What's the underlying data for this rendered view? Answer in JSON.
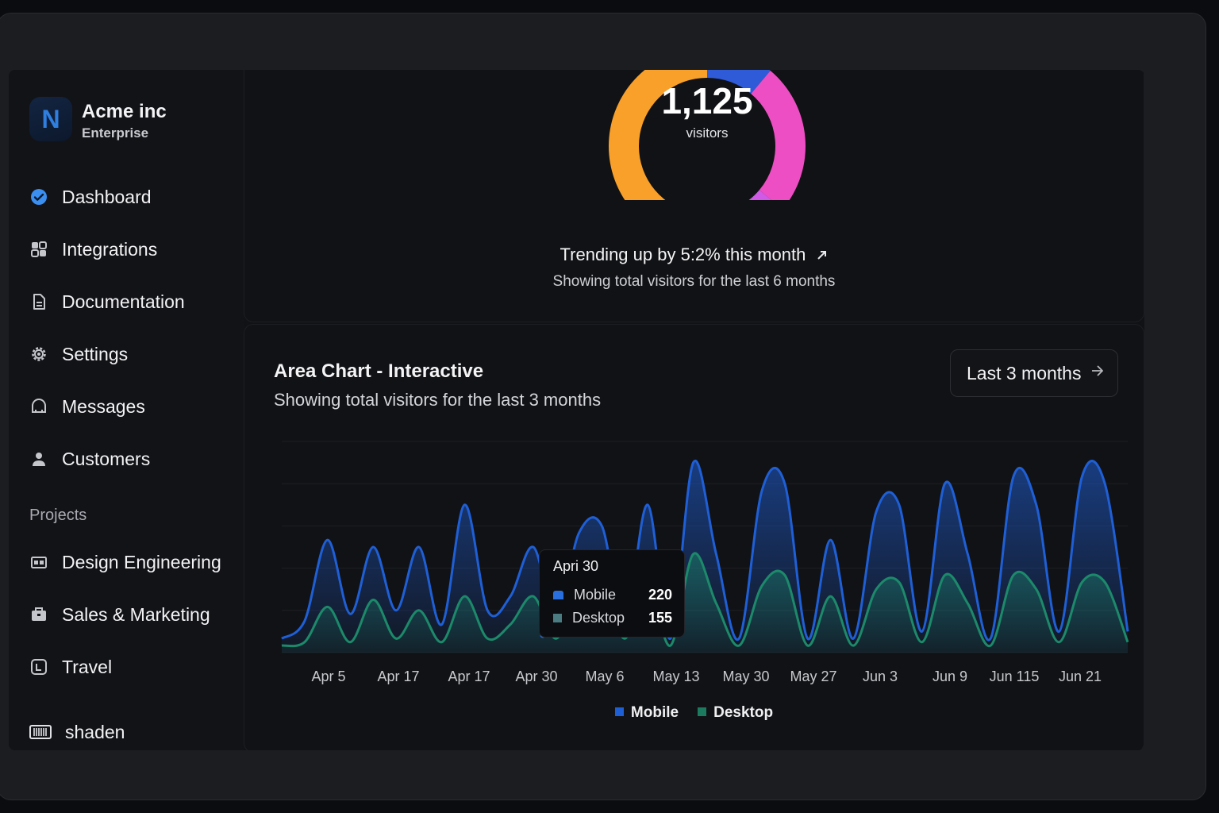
{
  "org": {
    "initial": "N",
    "name": "Acme inc",
    "plan": "Enterprise"
  },
  "sidebar": {
    "items": [
      {
        "label": "Dashboard",
        "icon": "check-circle-icon"
      },
      {
        "label": "Integrations",
        "icon": "integrations-icon"
      },
      {
        "label": "Documentation",
        "icon": "document-icon"
      },
      {
        "label": "Settings",
        "icon": "gear-icon"
      },
      {
        "label": "Messages",
        "icon": "message-icon"
      },
      {
        "label": "Customers",
        "icon": "user-icon"
      }
    ],
    "projects_label": "Projects",
    "projects": [
      {
        "label": "Design Engineering",
        "icon": "folder-icon"
      },
      {
        "label": "Sales & Marketing",
        "icon": "briefcase-icon"
      },
      {
        "label": "Travel",
        "icon": "map-icon"
      }
    ],
    "footer": {
      "label": "shaden",
      "icon": "barcode-icon"
    }
  },
  "donut_card": {
    "value": "1,125",
    "value_label": "visitors",
    "trend": "Trending up by 5:2% this month",
    "trend_icon": "trending-up-icon",
    "subtitle": "Showing total visitors for the last 6 months",
    "segment_colors": [
      "#2f5ad8",
      "#ee4ec4",
      "#d05ae6",
      "#f8a02a"
    ]
  },
  "area_card": {
    "title": "Area Chart - Interactive",
    "subtitle": "Showing total visitors for the last 3 months",
    "range_label": "Last 3 months",
    "range_icon": "chevron-right-icon"
  },
  "tooltip": {
    "date": "Apri 30",
    "rows": [
      {
        "label": "Mobile",
        "value": "220"
      },
      {
        "label": "Desktop",
        "value": "155"
      }
    ]
  },
  "chart_data": {
    "type": "area",
    "title": "Area Chart - Interactive",
    "x_tick_labels": [
      "Apr 5",
      "Apr 17",
      "Apr 17",
      "Apr 30",
      "May 6",
      "May 13",
      "May 30",
      "May 27",
      "Jun 3",
      "Jun 9",
      "Jun 115",
      "Jun 21"
    ],
    "y_max": 300,
    "grid": true,
    "legend_position": "bottom",
    "series": [
      {
        "name": "Mobile",
        "color": "#1f5fd6",
        "values": [
          20,
          45,
          160,
          55,
          150,
          60,
          150,
          40,
          210,
          60,
          80,
          150,
          50,
          170,
          180,
          40,
          210,
          20,
          270,
          140,
          20,
          230,
          240,
          20,
          160,
          20,
          200,
          210,
          30,
          240,
          140,
          20,
          250,
          210,
          30,
          250,
          240,
          30
        ]
      },
      {
        "name": "Desktop",
        "color": "#1c8a6a",
        "values": [
          10,
          15,
          65,
          15,
          75,
          20,
          60,
          15,
          80,
          20,
          40,
          80,
          20,
          90,
          95,
          20,
          100,
          10,
          140,
          70,
          10,
          95,
          110,
          10,
          80,
          10,
          90,
          100,
          15,
          110,
          70,
          10,
          110,
          90,
          15,
          100,
          100,
          15
        ]
      }
    ],
    "legend_colors": {
      "Mobile": "#1f5fd6",
      "Desktop": "#1c7a5e"
    }
  }
}
